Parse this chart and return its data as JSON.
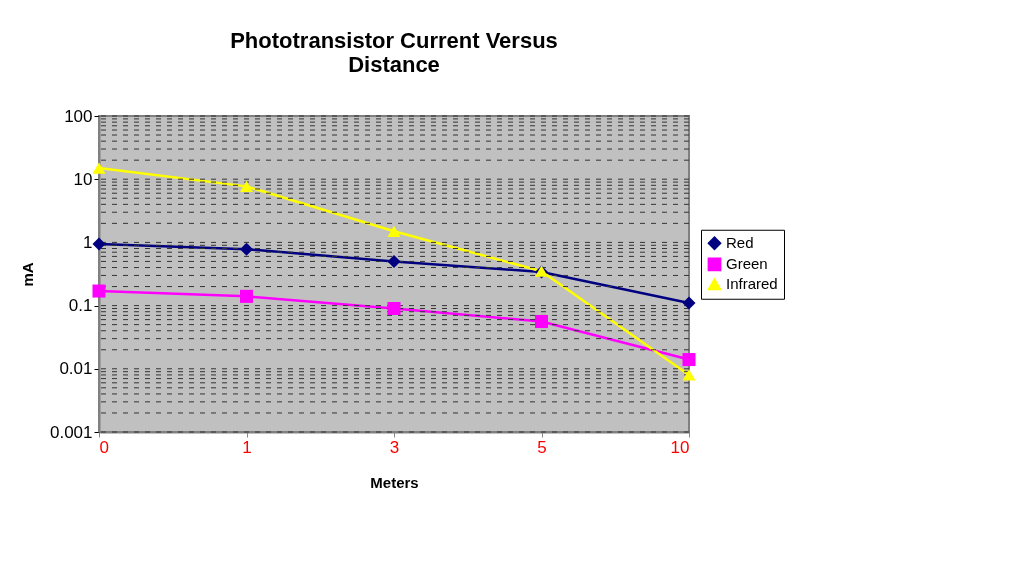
{
  "chart_data": {
    "type": "line",
    "title": [
      "Phototransistor  Current  Versus",
      "Distance"
    ],
    "xlabel": "Meters",
    "ylabel": "mA",
    "categories": [
      "0",
      "1",
      "3",
      "5",
      "10"
    ],
    "log": "y",
    "ylim": [
      0.001,
      100
    ],
    "yticks": [
      0.001,
      0.01,
      0.1,
      1,
      10,
      100
    ],
    "grid": "y",
    "legend": "right",
    "series": [
      {
        "name": "Red",
        "color": "#000080",
        "marker": "diamond",
        "values": [
          0.94,
          0.78,
          0.5,
          0.34,
          0.11
        ]
      },
      {
        "name": "Green",
        "color": "#ff00ff",
        "marker": "square",
        "values": [
          0.17,
          0.14,
          0.09,
          0.056,
          0.014
        ]
      },
      {
        "name": "Infrared",
        "color": "#ffff00",
        "marker": "triangle",
        "values": [
          15,
          7.7,
          1.5,
          0.35,
          0.008
        ]
      }
    ]
  }
}
